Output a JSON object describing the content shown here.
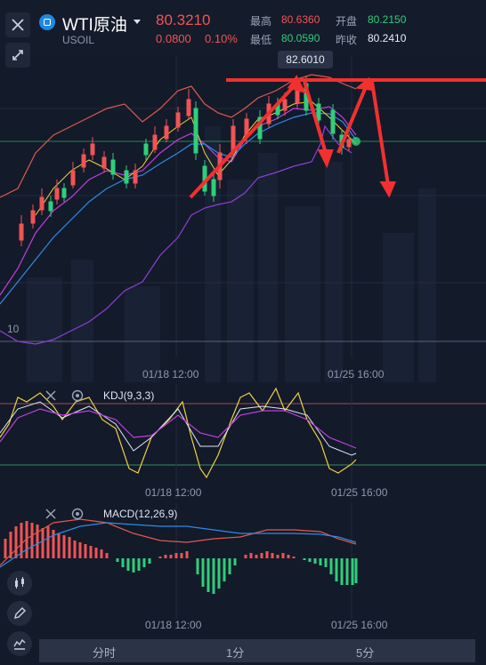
{
  "symbol": {
    "name": "WTI原油",
    "code": "USOIL",
    "price": "80.3210",
    "change": "0.0800",
    "change_pct": "0.10%"
  },
  "stats": {
    "high_label": "最高",
    "high_value": "80.6360",
    "low_label": "最低",
    "low_value": "80.0590",
    "open_label": "开盘",
    "open_value": "80.2150",
    "prev_close_label": "昨收",
    "prev_close_value": "80.2410"
  },
  "chart": {
    "max_price_tag": "82.6010",
    "axis_left_label": "10",
    "time_labels": [
      "01/18 12:00",
      "01/25 16:00"
    ]
  },
  "kdj": {
    "title": "KDJ(9,3,3)"
  },
  "macd": {
    "title": "MACD(12,26,9)"
  },
  "tabs": [
    {
      "label": "分时"
    },
    {
      "label": "1分"
    },
    {
      "label": "5分"
    }
  ],
  "icons": [
    "close-icon",
    "expand-icon",
    "candle-icon",
    "pen-icon",
    "indicator-icon",
    "eye-icon"
  ],
  "colors": {
    "up": "#f05454",
    "down": "#2fcf7a",
    "background": "#131a2a",
    "accent": "#1e88e5"
  }
}
